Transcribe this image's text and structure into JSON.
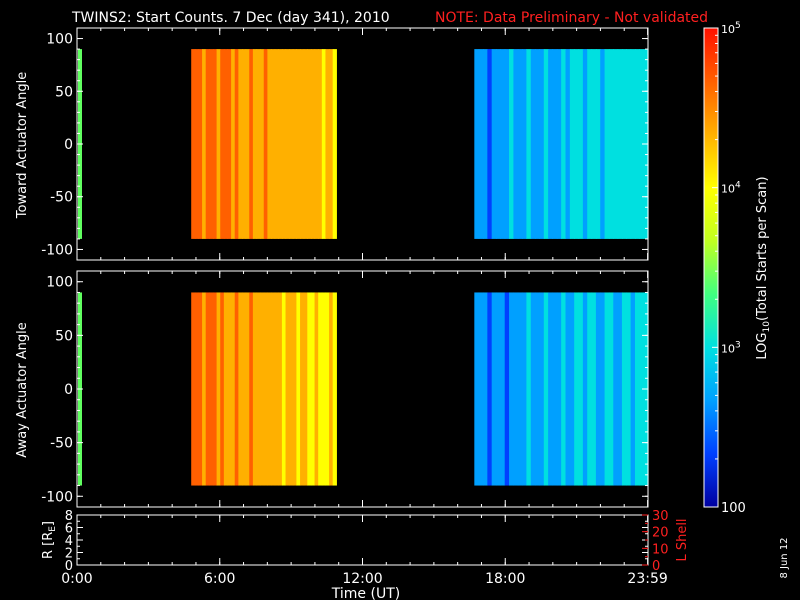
{
  "header": {
    "title": "TWINS2: Start Counts.  7 Dec (day 341), 2010",
    "note": "NOTE: Data Preliminary - Not validated",
    "note_color": "#ff2020"
  },
  "footer": {
    "date_stamp": "8 Jun 12"
  },
  "chart_data": [
    {
      "type": "heatmap",
      "ylabel": "Toward Actuator Angle",
      "ylim": [
        -110,
        110
      ],
      "y_ticks": [
        {
          "v": 100,
          "label": "100"
        },
        {
          "v": 50,
          "label": "50"
        },
        {
          "v": 0,
          "label": "0"
        },
        {
          "v": -50,
          "label": "-50"
        },
        {
          "v": -100,
          "label": "-100"
        }
      ],
      "xlim_hours": [
        0,
        24
      ],
      "x_ticks": [
        {
          "v": 0,
          "label": "0:00"
        },
        {
          "v": 6,
          "label": "6:00"
        },
        {
          "v": 12,
          "label": "12:00"
        },
        {
          "v": 18,
          "label": "18:00"
        },
        {
          "v": 23.983,
          "label": "23:59"
        }
      ],
      "data_ylim": [
        -90,
        90
      ],
      "segments": [
        {
          "x_start_hours": 4.8,
          "x_end_hours": 10.9,
          "mean_log10_counts": 4.55
        },
        {
          "x_start_hours": 16.7,
          "x_end_hours": 24.0,
          "mean_log10_counts": 2.9
        }
      ]
    },
    {
      "type": "heatmap",
      "ylabel": "Away Actuator Angle",
      "ylim": [
        -110,
        110
      ],
      "y_ticks": [
        {
          "v": 100,
          "label": "100"
        },
        {
          "v": 50,
          "label": "50"
        },
        {
          "v": 0,
          "label": "0"
        },
        {
          "v": -50,
          "label": "-50"
        },
        {
          "v": -100,
          "label": "-100"
        }
      ],
      "xlim_hours": [
        0,
        24
      ],
      "x_ticks": [
        {
          "v": 0,
          "label": "0:00"
        },
        {
          "v": 6,
          "label": "6:00"
        },
        {
          "v": 12,
          "label": "12:00"
        },
        {
          "v": 18,
          "label": "18:00"
        },
        {
          "v": 23.983,
          "label": "23:59"
        }
      ],
      "data_ylim": [
        -90,
        90
      ],
      "segments": [
        {
          "x_start_hours": 4.8,
          "x_end_hours": 10.9,
          "mean_log10_counts": 4.45
        },
        {
          "x_start_hours": 16.7,
          "x_end_hours": 24.0,
          "mean_log10_counts": 2.85
        }
      ]
    },
    {
      "type": "line",
      "ylabel": "R [R",
      "ylabel_sub": "E",
      "ylabel_end": "]",
      "ylim": [
        0,
        8
      ],
      "y_ticks": [
        {
          "v": 8,
          "label": "8"
        },
        {
          "v": 6,
          "label": "6"
        },
        {
          "v": 4,
          "label": "4"
        },
        {
          "v": 2,
          "label": "2"
        },
        {
          "v": 0,
          "label": "0"
        }
      ],
      "y2label": "L Shell",
      "y2lim": [
        0,
        30
      ],
      "y2_ticks": [
        {
          "v": 30,
          "label": "30"
        },
        {
          "v": 20,
          "label": "20"
        },
        {
          "v": 10,
          "label": "10"
        },
        {
          "v": 0,
          "label": "0"
        }
      ],
      "y2_color": "#ff2020",
      "xlabel": "Time (UT)",
      "x_ticks": [
        {
          "v": 0,
          "label": "0:00"
        },
        {
          "v": 6,
          "label": "6:00"
        },
        {
          "v": 12,
          "label": "12:00"
        },
        {
          "v": 18,
          "label": "18:00"
        },
        {
          "v": 23.983,
          "label": "23:59"
        }
      ],
      "series": []
    }
  ],
  "colorbar": {
    "label_prefix": "LOG",
    "label_sub": "10",
    "label_suffix": "(Total Starts per Scan)",
    "scale": "log",
    "range": [
      2,
      5
    ],
    "ticks": [
      {
        "v": 5,
        "base": "10",
        "exp": "5"
      },
      {
        "v": 4,
        "base": "10",
        "exp": "4"
      },
      {
        "v": 3,
        "base": "10",
        "exp": "3"
      },
      {
        "v": 2,
        "base": "100",
        "exp": ""
      }
    ],
    "colors": [
      "#0000a0",
      "#0040ff",
      "#00a0ff",
      "#00e0e0",
      "#40ff80",
      "#c0ff20",
      "#ffff00",
      "#ffb000",
      "#ff6000",
      "#ff1000"
    ]
  }
}
